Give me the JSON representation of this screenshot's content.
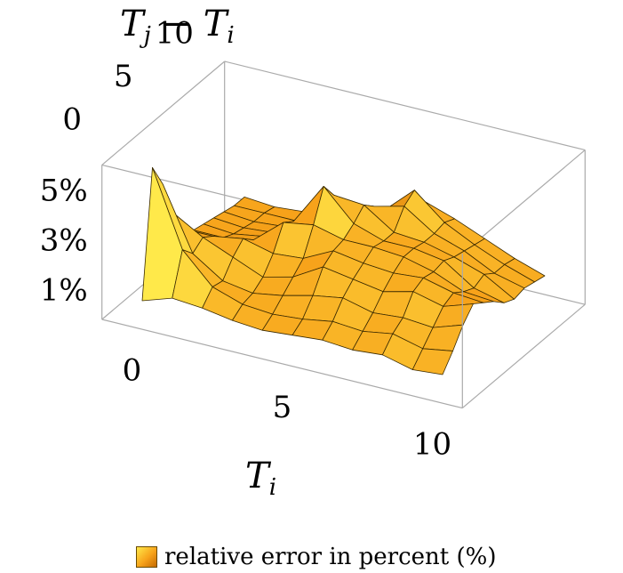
{
  "chart_data": {
    "type": "surface3d",
    "x_axis": {
      "label": "T_i",
      "label_main": "T",
      "label_sub": "i",
      "ticks": [
        "0",
        "5",
        "10"
      ],
      "range": [
        0,
        10
      ]
    },
    "y_axis": {
      "label": "T_j − T_i",
      "label_main1": "T",
      "label_sub1": "j",
      "label_op": " − ",
      "label_main2": "T",
      "label_sub2": "i",
      "ticks": [
        "0",
        "5",
        "10"
      ],
      "range": [
        0,
        10
      ]
    },
    "z_axis": {
      "ticks": [
        "1%",
        "3%",
        "5%"
      ],
      "range": [
        0,
        6
      ],
      "unit": "%"
    },
    "grid_n": 11,
    "x": [
      0,
      1,
      2,
      3,
      4,
      5,
      6,
      7,
      8,
      9,
      10
    ],
    "y": [
      0,
      1,
      2,
      3,
      4,
      5,
      6,
      7,
      8,
      9,
      10
    ],
    "z": [
      [
        0.5,
        5.5,
        4.5,
        3.0,
        2.0,
        1.6,
        1.5,
        1.4,
        1.3,
        1.2,
        1.2
      ],
      [
        0.9,
        2.5,
        2.0,
        2.3,
        2.0,
        1.6,
        1.4,
        1.3,
        1.2,
        1.2,
        1.1
      ],
      [
        0.8,
        1.3,
        1.2,
        1.8,
        2.2,
        1.8,
        1.6,
        1.4,
        1.3,
        1.2,
        1.2
      ],
      [
        0.6,
        0.9,
        1.0,
        1.3,
        1.9,
        2.8,
        2.5,
        2.0,
        1.6,
        1.4,
        1.3
      ],
      [
        0.5,
        0.8,
        1.2,
        1.6,
        2.0,
        3.0,
        4.2,
        3.5,
        2.8,
        2.2,
        1.8
      ],
      [
        0.6,
        0.9,
        1.5,
        2.3,
        2.6,
        2.7,
        3.0,
        3.4,
        3.0,
        2.5,
        2.0
      ],
      [
        0.7,
        1.1,
        1.7,
        2.1,
        2.4,
        2.7,
        2.6,
        2.6,
        3.3,
        3.6,
        2.8
      ],
      [
        0.6,
        1.0,
        1.4,
        1.9,
        2.3,
        2.6,
        2.6,
        2.5,
        2.5,
        2.6,
        2.4
      ],
      [
        0.7,
        1.2,
        1.5,
        2.2,
        2.4,
        2.3,
        2.4,
        2.2,
        2.1,
        2.0,
        1.9
      ],
      [
        0.4,
        0.9,
        1.4,
        1.9,
        2.1,
        1.8,
        1.6,
        1.8,
        1.5,
        1.5,
        1.4
      ],
      [
        0.5,
        1.1,
        1.8,
        2.3,
        2.0,
        1.7,
        1.3,
        1.1,
        1.2,
        1.1,
        1.0
      ]
    ],
    "legend": {
      "label": "relative error in percent (%)",
      "position": "bottom"
    },
    "colors": {
      "surface_light": "#ffe94a",
      "surface_mid": "#f7a21a",
      "surface_dark": "#b06000",
      "mesh": "#3a2a00",
      "box": "#aaaaaa"
    }
  }
}
